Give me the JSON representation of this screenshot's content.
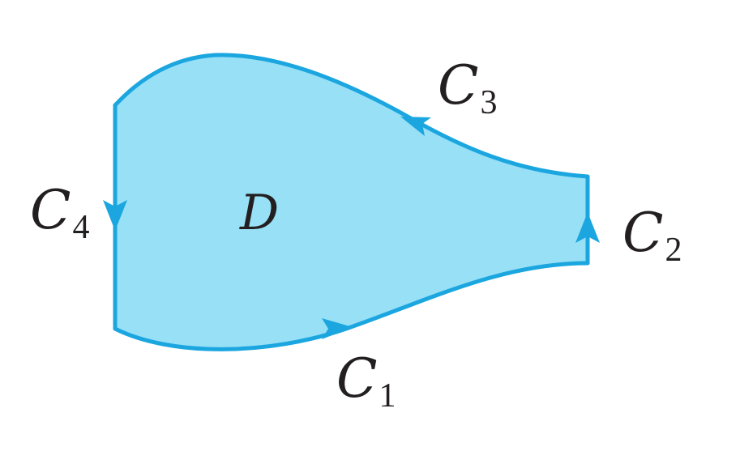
{
  "diagram": {
    "region": {
      "label": "D",
      "fill_color": "#97e0f6",
      "stroke_color": "#1ba6e0"
    },
    "curves": [
      {
        "letter": "C",
        "subscript": "1",
        "arrow_direction": "right"
      },
      {
        "letter": "C",
        "subscript": "2",
        "arrow_direction": "up"
      },
      {
        "letter": "C",
        "subscript": "3",
        "arrow_direction": "left"
      },
      {
        "letter": "C",
        "subscript": "4",
        "arrow_direction": "down"
      }
    ]
  }
}
